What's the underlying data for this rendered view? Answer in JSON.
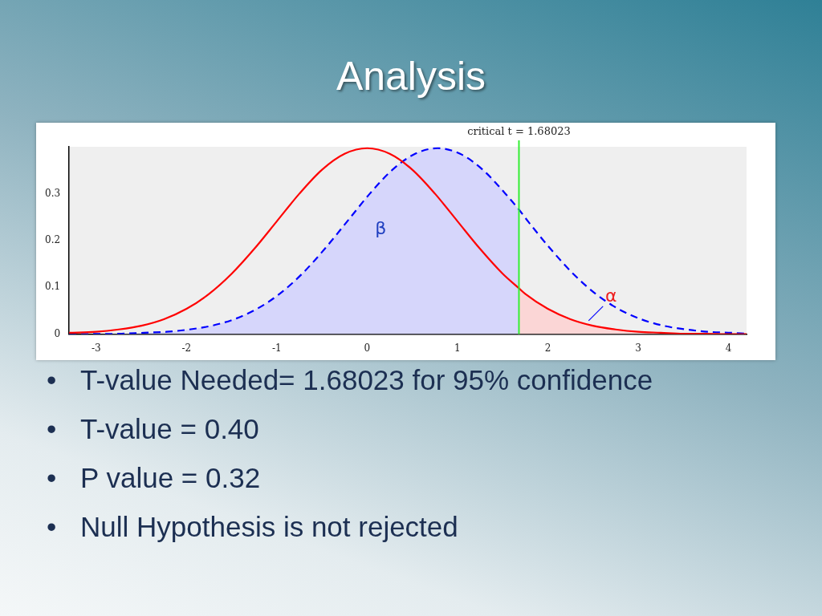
{
  "chart_data": {
    "type": "line",
    "title": "Analysis",
    "xlim": [
      -3.3,
      4.2
    ],
    "xticks": [
      -3,
      -2,
      -1,
      0,
      1,
      2,
      3,
      4
    ],
    "ylim": [
      0,
      0.4
    ],
    "yticks": [
      0,
      0.1,
      0.2,
      0.3
    ],
    "grid": false,
    "legend": false,
    "marker": "none",
    "series": [
      {
        "color": "#ff0000",
        "line_style": "solid",
        "x": [
          -3.3,
          -3,
          -2.75,
          -2.5,
          -2.25,
          -2,
          -1.75,
          -1.5,
          -1.25,
          -1,
          -0.75,
          -0.5,
          -0.25,
          0,
          0.25,
          0.5,
          0.75,
          1,
          1.25,
          1.5,
          1.68,
          1.75,
          2,
          2.25,
          2.5,
          2.75,
          3,
          3.25,
          3.5,
          3.75,
          4,
          4.2
        ],
        "values": [
          0.003,
          0.005,
          0.01,
          0.018,
          0.032,
          0.054,
          0.086,
          0.129,
          0.182,
          0.241,
          0.3,
          0.351,
          0.385,
          0.397,
          0.385,
          0.351,
          0.3,
          0.241,
          0.182,
          0.129,
          0.098,
          0.086,
          0.054,
          0.032,
          0.018,
          0.01,
          0.005,
          0.003,
          0.001,
          0.001,
          0,
          0
        ]
      },
      {
        "color": "#0000ff",
        "line_style": "dashed",
        "x": [
          -3.3,
          -2.72,
          -2.47,
          -2.22,
          -1.97,
          -1.72,
          -1.47,
          -1.22,
          -0.97,
          -0.72,
          -0.47,
          -0.22,
          0.03,
          0.28,
          0.53,
          0.78,
          1.03,
          1.28,
          1.53,
          1.68,
          1.78,
          2.03,
          2.28,
          2.53,
          2.78,
          3.03,
          3.28,
          3.53,
          3.78,
          4.03,
          4.2
        ],
        "values": [
          0,
          0.001,
          0.003,
          0.005,
          0.01,
          0.018,
          0.032,
          0.054,
          0.086,
          0.129,
          0.182,
          0.241,
          0.3,
          0.351,
          0.385,
          0.397,
          0.385,
          0.351,
          0.3,
          0.266,
          0.241,
          0.182,
          0.129,
          0.086,
          0.054,
          0.032,
          0.018,
          0.01,
          0.005,
          0.003,
          0.001
        ]
      },
      {
        "type": "area",
        "color": "#d6d6fb",
        "x": [
          -3.3,
          -2.72,
          -2.47,
          -2.22,
          -1.97,
          -1.72,
          -1.47,
          -1.22,
          -0.97,
          -0.72,
          -0.47,
          -0.22,
          0.03,
          0.28,
          0.53,
          0.78,
          1.03,
          1.28,
          1.53,
          1.68
        ],
        "values": [
          0,
          0.001,
          0.003,
          0.005,
          0.01,
          0.018,
          0.032,
          0.054,
          0.086,
          0.129,
          0.182,
          0.241,
          0.3,
          0.351,
          0.385,
          0.397,
          0.385,
          0.351,
          0.3,
          0.266
        ]
      },
      {
        "type": "area",
        "color": "#fbd6d6",
        "x": [
          1.68,
          1.75,
          2,
          2.25,
          2.5,
          2.75,
          3,
          3.25,
          3.5,
          3.75,
          4,
          4.2
        ],
        "values": [
          0.098,
          0.086,
          0.054,
          0.032,
          0.018,
          0.01,
          0.005,
          0.003,
          0.001,
          0.001,
          0,
          0
        ]
      }
    ],
    "ref_lines": [
      {
        "axis": "x",
        "value": 1.68023,
        "label": "critical t = 1.68023",
        "color": "#33ee33"
      }
    ],
    "annotations": [
      "β",
      "α",
      "• T-value Needed= 1.68023 for 95% confidence",
      "• T-value = 0.40",
      "• P value = 0.32",
      "• Null Hypothesis is not rejected"
    ]
  }
}
